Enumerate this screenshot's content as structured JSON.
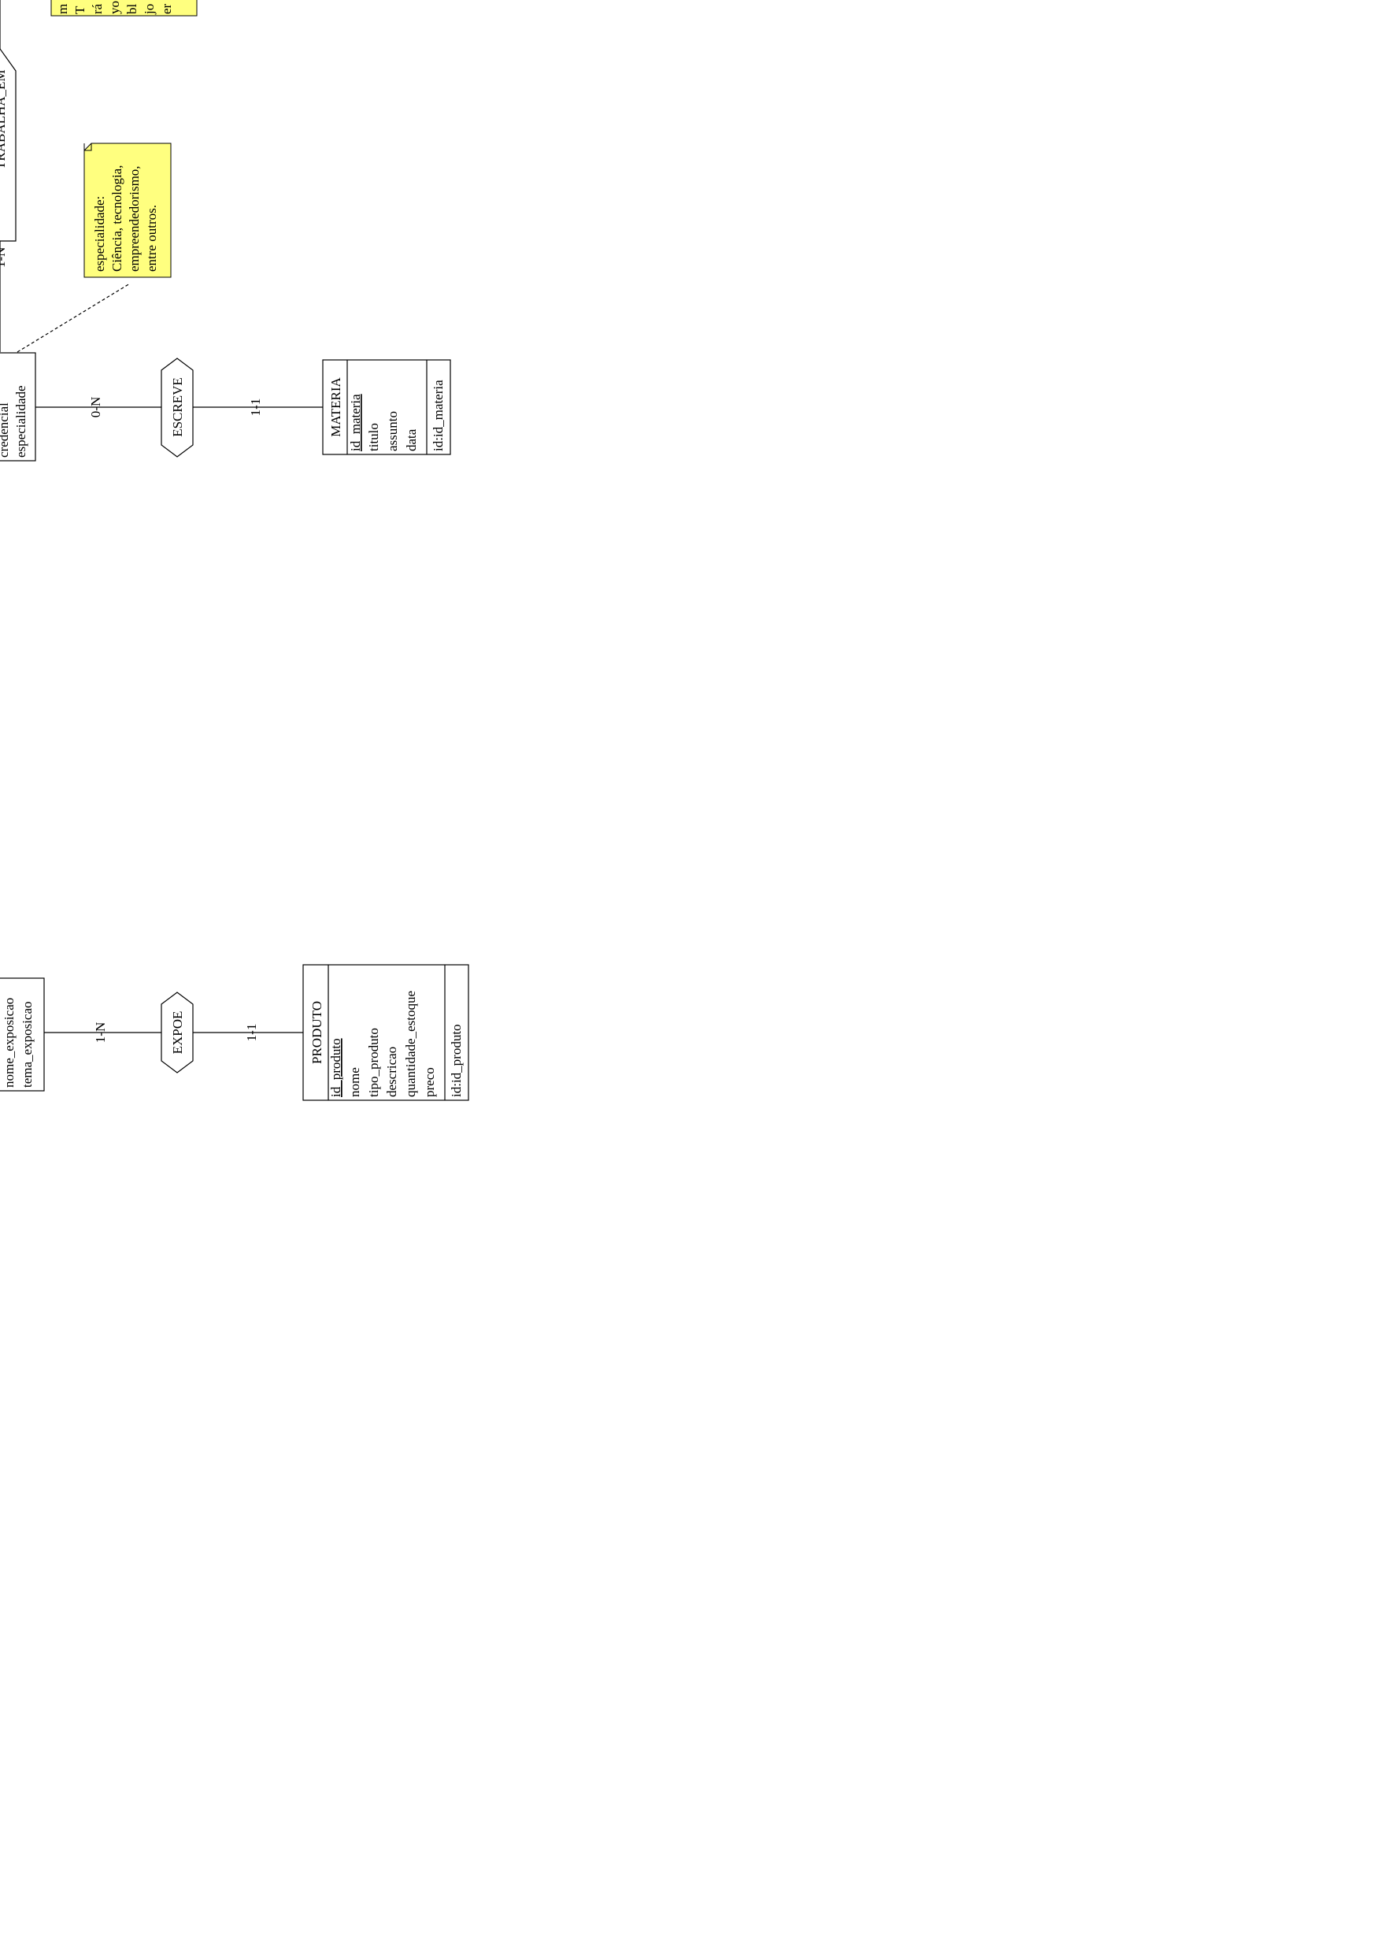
{
  "colors": {
    "line": "#000000",
    "note_fill": "#ffff7f",
    "entity_fill": "#ffffff",
    "relationship_fill": "#ffffff"
  },
  "entities": {
    "clipped_top": {
      "attributes": [
        "credencial",
        "especialidade"
      ]
    },
    "clipped_middle": {
      "attributes": [
        "nome_exposicao",
        "tema_exposicao"
      ]
    },
    "materia": {
      "name": "MATERIA",
      "attributes": [
        "id_materia",
        "titulo",
        "assunto",
        "data"
      ],
      "identifier": "id:id_materia"
    },
    "produto": {
      "name": "PRODUTO",
      "attributes": [
        "id_produto",
        "nome",
        "tipo_produto",
        "descricao",
        "quantidade_estoque",
        "preco"
      ],
      "identifier": "id:id_produto"
    }
  },
  "relationships": {
    "trabalha": {
      "label": "TRABALHA_EM"
    },
    "escreve": {
      "label": "ESCREVE"
    },
    "expoe": {
      "label": "EXPOE"
    }
  },
  "cardinalities": {
    "trabalha_upper": "1-N",
    "escreve_upper": "0-N",
    "escreve_lower": "1-1",
    "expoe_upper": "1-N",
    "expoe_lower": "1-1"
  },
  "notes": {
    "especialidade_note": {
      "lines": [
        "especialidade:",
        "Ciência, tecnologia,",
        "empreendedorismo,",
        "entre outros."
      ]
    },
    "clipped_note": {
      "lines": [
        "m",
        "T",
        "rá",
        "yo",
        "bl",
        "jo",
        "er"
      ]
    }
  }
}
